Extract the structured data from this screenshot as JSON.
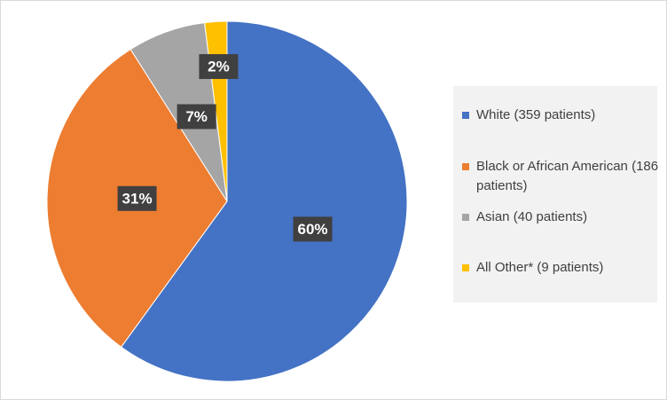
{
  "chart_data": {
    "type": "pie",
    "categories": [
      "White (359 patients)",
      "Black or African American (186 patients)",
      "Asian (40 patients)",
      "All Other* (9 patients)"
    ],
    "values": [
      60,
      31,
      7,
      2
    ],
    "value_labels": [
      "60%",
      "31%",
      "7%",
      "2%"
    ],
    "colors": [
      "#4472c4",
      "#ed7d31",
      "#a5a5a5",
      "#ffc000"
    ],
    "legend": "right"
  }
}
